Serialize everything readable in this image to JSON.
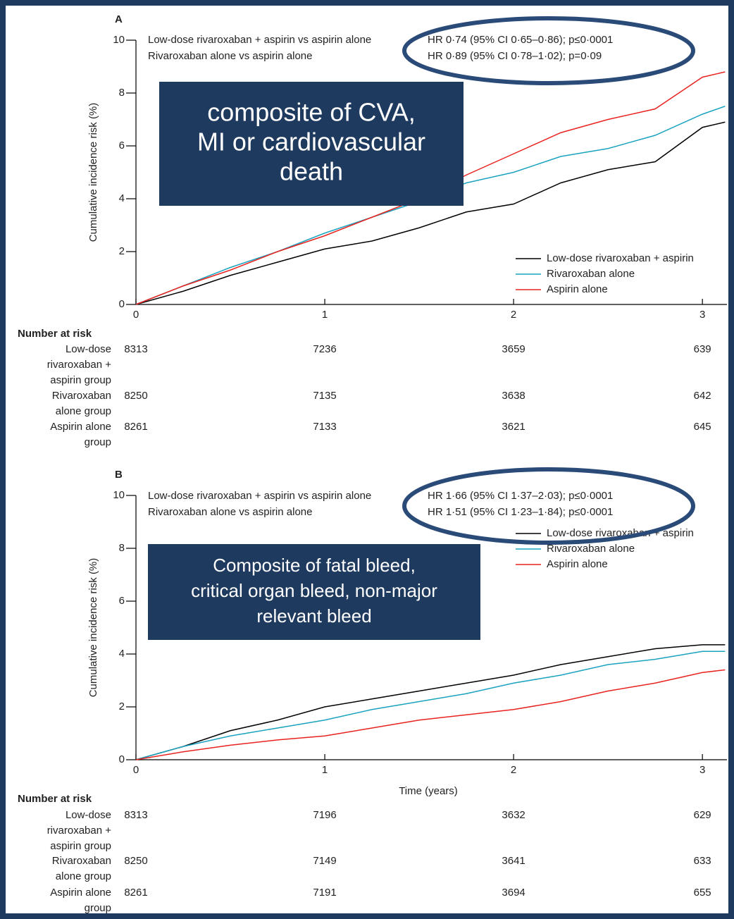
{
  "chart_data": [
    {
      "type": "line",
      "panel_label": "A",
      "annotations": [
        {
          "label": "Low-dose rivaroxaban + aspirin vs aspirin alone",
          "text": "HR 0·74 (95% CI 0·65–0·86); p≤0·0001"
        },
        {
          "label": "Rivaroxaban alone vs aspirin alone",
          "text": "HR 0·89 (95% CI 0·78–1·02); p=0·09"
        }
      ],
      "callout": [
        "composite of CVA,",
        "MI or cardiovascular",
        "death"
      ],
      "ylabel": "Cumulative incidence risk (%)",
      "x": [
        0,
        0.25,
        0.5,
        0.75,
        1,
        1.25,
        1.5,
        1.75,
        2,
        2.25,
        2.5,
        2.75,
        3,
        3.12
      ],
      "series": [
        {
          "name": "Low-dose rivaroxaban + aspirin",
          "color": "#000000",
          "values": [
            0,
            0.5,
            1.1,
            1.6,
            2.1,
            2.4,
            2.9,
            3.5,
            3.8,
            4.6,
            5.1,
            5.4,
            6.7,
            6.9
          ]
        },
        {
          "name": "Rivaroxaban alone",
          "color": "#1aa3c0",
          "values": [
            0,
            0.7,
            1.4,
            2.0,
            2.7,
            3.3,
            3.9,
            4.6,
            5.0,
            5.6,
            5.9,
            6.4,
            7.2,
            7.5
          ]
        },
        {
          "name": "Aspirin alone",
          "color": "#e8231f",
          "values": [
            0,
            0.7,
            1.3,
            2.0,
            2.6,
            3.3,
            4.0,
            4.9,
            5.7,
            6.5,
            7.0,
            7.4,
            8.6,
            8.8
          ]
        }
      ],
      "xlim": [
        0,
        3.13
      ],
      "ylim": [
        0,
        10
      ],
      "xticks": [
        0,
        1,
        2,
        3
      ],
      "yticks": [
        0,
        2,
        4,
        6,
        8,
        10
      ],
      "legend": "lower right",
      "risk_table": {
        "title": "Number at risk",
        "rows": [
          {
            "label": [
              "Low-dose",
              "rivaroxaban +",
              "aspirin group"
            ],
            "values": [
              8313,
              7236,
              3659,
              639
            ]
          },
          {
            "label": [
              "Rivaroxaban",
              "alone group"
            ],
            "values": [
              8250,
              7135,
              3638,
              642
            ]
          },
          {
            "label": [
              "Aspirin alone",
              "group"
            ],
            "values": [
              8261,
              7133,
              3621,
              645
            ]
          }
        ]
      }
    },
    {
      "type": "line",
      "panel_label": "B",
      "annotations": [
        {
          "label": "Low-dose rivaroxaban + aspirin vs aspirin alone",
          "text": "HR 1·66 (95% CI 1·37–2·03); p≤0·0001"
        },
        {
          "label": "Rivaroxaban alone vs aspirin alone",
          "text": "HR 1·51 (95% CI 1·23–1·84); p≤0·0001"
        }
      ],
      "callout": [
        "Composite of fatal bleed,",
        "critical organ bleed, non-major",
        "relevant bleed"
      ],
      "ylabel": "Cumulative incidence risk (%)",
      "xlabel": "Time (years)",
      "x": [
        0,
        0.25,
        0.5,
        0.75,
        1,
        1.25,
        1.5,
        1.75,
        2,
        2.25,
        2.5,
        2.75,
        3,
        3.12
      ],
      "series": [
        {
          "name": "Low-dose rivaroxaban + aspirin",
          "color": "#000000",
          "values": [
            0,
            0.5,
            1.1,
            1.5,
            2.0,
            2.3,
            2.6,
            2.9,
            3.2,
            3.6,
            3.9,
            4.2,
            4.35,
            4.35
          ]
        },
        {
          "name": "Rivaroxaban alone",
          "color": "#1aa3c0",
          "values": [
            0,
            0.5,
            0.9,
            1.2,
            1.5,
            1.9,
            2.2,
            2.5,
            2.9,
            3.2,
            3.6,
            3.8,
            4.1,
            4.1
          ]
        },
        {
          "name": "Aspirin alone",
          "color": "#e8231f",
          "values": [
            0,
            0.3,
            0.55,
            0.75,
            0.9,
            1.2,
            1.5,
            1.7,
            1.9,
            2.2,
            2.6,
            2.9,
            3.3,
            3.4
          ]
        }
      ],
      "xlim": [
        0,
        3.13
      ],
      "ylim": [
        0,
        10
      ],
      "xticks": [
        0,
        1,
        2,
        3
      ],
      "yticks": [
        0,
        2,
        4,
        6,
        8,
        10
      ],
      "legend": "upper right",
      "risk_table": {
        "title": "Number at risk",
        "rows": [
          {
            "label": [
              "Low-dose",
              "rivaroxaban +",
              "aspirin group"
            ],
            "values": [
              8313,
              7196,
              3632,
              629
            ]
          },
          {
            "label": [
              "Rivaroxaban",
              "alone group"
            ],
            "values": [
              8250,
              7149,
              3641,
              633
            ]
          },
          {
            "label": [
              "Aspirin alone",
              "group"
            ],
            "values": [
              8261,
              7191,
              3694,
              655
            ]
          }
        ]
      }
    }
  ]
}
